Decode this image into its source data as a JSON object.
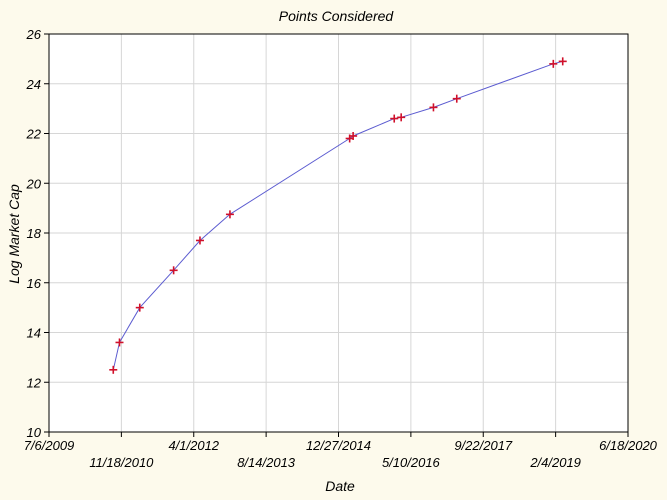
{
  "chart_data": {
    "type": "line",
    "title": "Points Considered",
    "xlabel": "Date",
    "ylabel": "Log Market Cap",
    "grid": true,
    "x_axis_type": "date",
    "xlim": [
      "2009-07-06",
      "2020-06-18"
    ],
    "ylim": [
      10,
      26
    ],
    "x_ticks": [
      "7/6/2009",
      "11/18/2010",
      "4/1/2012",
      "8/14/2013",
      "12/27/2014",
      "5/10/2016",
      "9/22/2017",
      "2/4/2019",
      "6/18/2020"
    ],
    "y_ticks": [
      10,
      12,
      14,
      16,
      18,
      20,
      22,
      24,
      26
    ],
    "series": [
      {
        "line_color": "#5b5bd0",
        "marker": "plus",
        "marker_color": "#d0102a",
        "points": [
          {
            "x": "2010-09-23",
            "y": 12.5
          },
          {
            "x": "2010-11-05",
            "y": 13.6
          },
          {
            "x": "2011-03-25",
            "y": 15.0
          },
          {
            "x": "2011-11-14",
            "y": 16.5
          },
          {
            "x": "2012-05-14",
            "y": 17.7
          },
          {
            "x": "2012-12-07",
            "y": 18.75
          },
          {
            "x": "2015-03-14",
            "y": 21.8
          },
          {
            "x": "2015-04-07",
            "y": 21.9
          },
          {
            "x": "2016-01-16",
            "y": 22.6
          },
          {
            "x": "2016-03-04",
            "y": 22.65
          },
          {
            "x": "2016-10-13",
            "y": 23.05
          },
          {
            "x": "2017-03-23",
            "y": 23.4
          },
          {
            "x": "2019-01-19",
            "y": 24.8
          },
          {
            "x": "2019-03-25",
            "y": 24.9
          }
        ]
      }
    ]
  }
}
